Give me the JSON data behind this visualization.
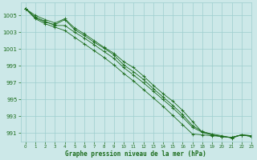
{
  "title": "Graphe pression niveau de la mer (hPa)",
  "bg_color": "#cce8e8",
  "grid_color": "#9ecece",
  "line_color": "#1a6b1a",
  "xlim": [
    -0.5,
    23
  ],
  "ylim": [
    990.0,
    1006.5
  ],
  "yticks": [
    991,
    993,
    995,
    997,
    999,
    1001,
    1003,
    1005
  ],
  "xticks": [
    0,
    1,
    2,
    3,
    4,
    5,
    6,
    7,
    8,
    9,
    10,
    11,
    12,
    13,
    14,
    15,
    16,
    17,
    18,
    19,
    20,
    21,
    22,
    23
  ],
  "series": [
    [
      1005.8,
      1005.0,
      1004.5,
      1004.1,
      1004.6,
      1003.5,
      1002.8,
      1002.0,
      1001.2,
      1000.5,
      999.5,
      998.8,
      997.8,
      996.7,
      995.7,
      994.8,
      993.7,
      992.4,
      991.1,
      990.8,
      990.6,
      990.5,
      990.8,
      990.7
    ],
    [
      1005.8,
      1004.7,
      1004.2,
      1003.9,
      1004.5,
      1003.3,
      1002.6,
      1001.8,
      1001.1,
      1000.3,
      999.1,
      998.3,
      997.4,
      996.3,
      995.3,
      994.3,
      993.2,
      991.9,
      991.2,
      990.9,
      990.7,
      990.4,
      990.8,
      990.6
    ],
    [
      1005.8,
      1004.6,
      1004.0,
      1003.6,
      1003.2,
      1002.4,
      1001.6,
      1000.8,
      1000.0,
      999.1,
      998.1,
      997.2,
      996.2,
      995.2,
      994.2,
      993.1,
      992.0,
      990.9,
      990.8,
      990.7,
      990.6,
      990.5,
      990.8,
      990.6
    ],
    [
      1005.8,
      1004.8,
      1004.3,
      1003.8,
      1003.8,
      1003.0,
      1002.3,
      1001.5,
      1000.7,
      999.9,
      998.8,
      997.9,
      997.0,
      996.0,
      995.0,
      994.0,
      992.9,
      991.7,
      991.1,
      990.8,
      990.6,
      990.5,
      990.8,
      990.7
    ]
  ]
}
